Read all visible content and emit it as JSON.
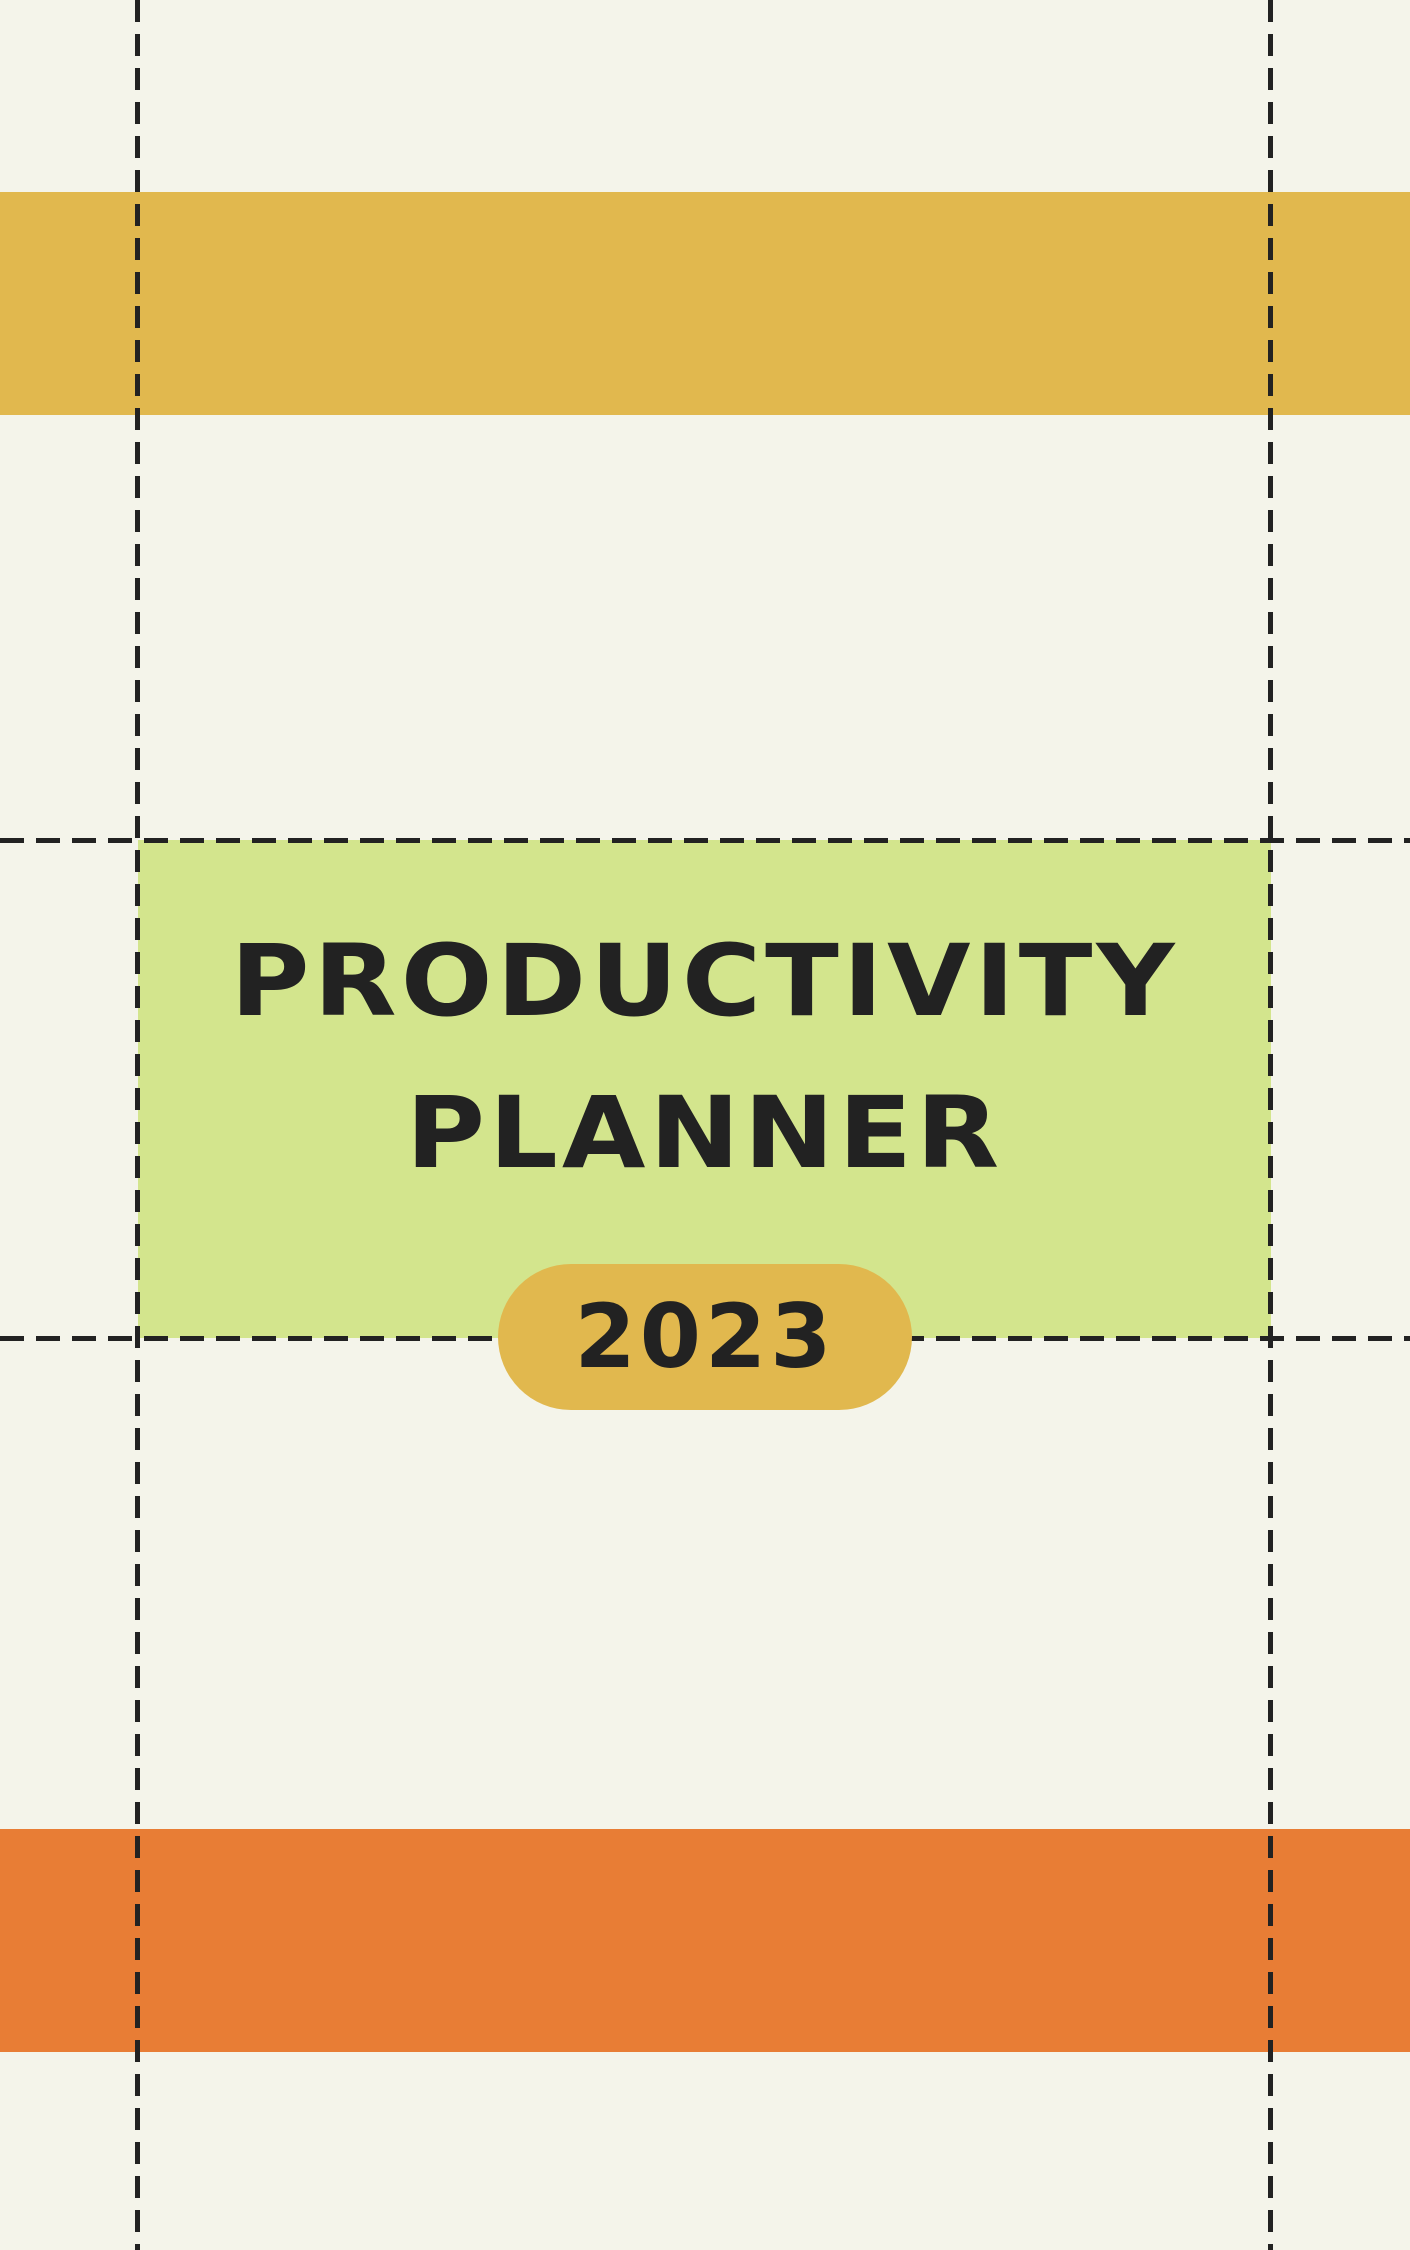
{
  "cover": {
    "title_line_1": "PRODUCTIVITY",
    "title_line_2": "PLANNER",
    "year": "2023"
  },
  "colors": {
    "background": "#f4f4ea",
    "top_band": "#e1b84e",
    "bottom_band": "#e87d35",
    "title_panel": "#d3e58d",
    "year_pill": "#e1b84e",
    "ink": "#222222"
  }
}
